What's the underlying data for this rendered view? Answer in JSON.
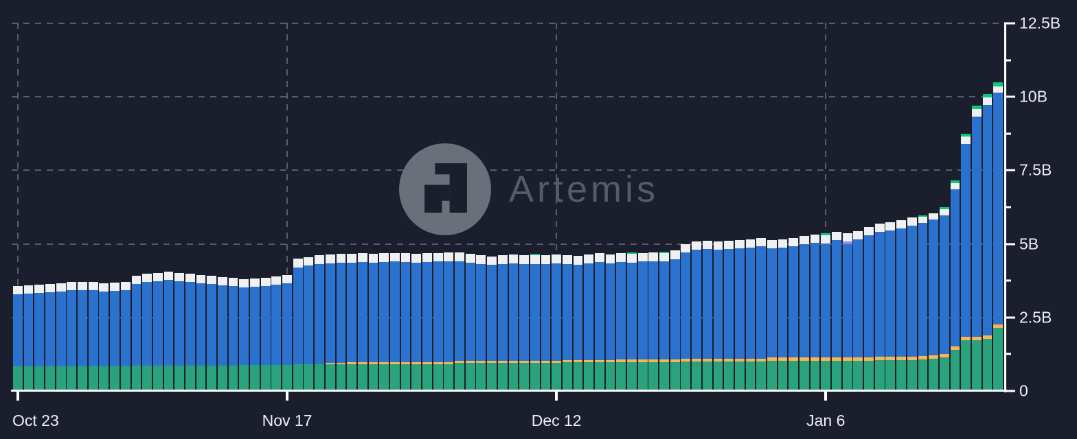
{
  "watermark": {
    "text": "Artemis"
  },
  "colors": {
    "background": "#1b1f2d",
    "axis": "#ffffff",
    "gridline": "#575d6e",
    "tick_label": "#eef0f4",
    "watermark_circle": "#6b6f7a",
    "watermark_text": "#565b66"
  },
  "chart_data": {
    "type": "bar",
    "stacked": true,
    "unit": "billions",
    "title": "",
    "legend": "none",
    "y_axis": {
      "side": "right",
      "max": 12.5,
      "ticks": [
        {
          "value": 0,
          "label": "0"
        },
        {
          "value": 2.5,
          "label": "2.5B"
        },
        {
          "value": 5,
          "label": "5B"
        },
        {
          "value": 7.5,
          "label": "7.5B"
        },
        {
          "value": 10,
          "label": "10B"
        },
        {
          "value": 12.5,
          "label": "12.5B"
        }
      ],
      "minor_ticks": [
        1.25,
        3.75,
        6.25,
        8.75,
        11.25
      ],
      "grid_values": [
        2.5,
        5,
        7.5,
        10,
        12.5
      ]
    },
    "x_axis": {
      "ticks": [
        {
          "index": 0,
          "label": "Oct 23"
        },
        {
          "index": 25,
          "label": "Nov 17"
        },
        {
          "index": 50,
          "label": "Dec 12"
        },
        {
          "index": 75,
          "label": "Jan 6"
        }
      ]
    },
    "series": [
      {
        "name": "green",
        "color": "#2aa27b"
      },
      {
        "name": "orange",
        "color": "#f7b554"
      },
      {
        "name": "blue",
        "color": "#2b72cf"
      },
      {
        "name": "purple",
        "color": "#8e8cf0"
      },
      {
        "name": "white",
        "color": "#eef0f1"
      },
      {
        "name": "mint",
        "color": "#0cc97d"
      }
    ],
    "bars": [
      [
        0.85,
        0,
        2.45,
        0,
        0.28,
        0
      ],
      [
        0.85,
        0,
        2.47,
        0,
        0.28,
        0
      ],
      [
        0.85,
        0,
        2.49,
        0,
        0.28,
        0
      ],
      [
        0.85,
        0,
        2.51,
        0,
        0.28,
        0
      ],
      [
        0.85,
        0,
        2.53,
        0,
        0.28,
        0
      ],
      [
        0.85,
        0,
        2.57,
        0,
        0.28,
        0
      ],
      [
        0.85,
        0,
        2.59,
        0,
        0.28,
        0
      ],
      [
        0.85,
        0,
        2.57,
        0,
        0.28,
        0
      ],
      [
        0.85,
        0,
        2.53,
        0,
        0.28,
        0
      ],
      [
        0.85,
        0,
        2.55,
        0,
        0.28,
        0
      ],
      [
        0.85,
        0,
        2.59,
        0,
        0.28,
        0
      ],
      [
        0.87,
        0,
        2.77,
        0,
        0.28,
        0
      ],
      [
        0.87,
        0,
        2.83,
        0,
        0.28,
        0
      ],
      [
        0.87,
        0,
        2.87,
        0,
        0.28,
        0
      ],
      [
        0.87,
        0,
        2.9,
        0,
        0.28,
        0
      ],
      [
        0.87,
        0,
        2.87,
        0,
        0.28,
        0
      ],
      [
        0.87,
        0,
        2.83,
        0,
        0.28,
        0
      ],
      [
        0.87,
        0,
        2.8,
        0,
        0.28,
        0
      ],
      [
        0.87,
        0,
        2.77,
        0,
        0.28,
        0
      ],
      [
        0.87,
        0,
        2.73,
        0,
        0.28,
        0
      ],
      [
        0.87,
        0,
        2.69,
        0,
        0.28,
        0
      ],
      [
        0.88,
        0,
        2.64,
        0,
        0.28,
        0
      ],
      [
        0.88,
        0,
        2.66,
        0,
        0.28,
        0
      ],
      [
        0.88,
        0,
        2.7,
        0,
        0.28,
        0
      ],
      [
        0.88,
        0,
        2.74,
        0,
        0.28,
        0
      ],
      [
        0.88,
        0,
        2.79,
        0,
        0.28,
        0
      ],
      [
        0.9,
        0,
        3.3,
        0,
        0.3,
        0
      ],
      [
        0.9,
        0,
        3.36,
        0,
        0.3,
        0
      ],
      [
        0.9,
        0,
        3.42,
        0,
        0.3,
        0
      ],
      [
        0.9,
        0.06,
        3.38,
        0,
        0.3,
        0
      ],
      [
        0.9,
        0.06,
        3.4,
        0,
        0.3,
        0
      ],
      [
        0.92,
        0.06,
        3.38,
        0,
        0.3,
        0
      ],
      [
        0.92,
        0.06,
        3.4,
        0,
        0.3,
        0
      ],
      [
        0.92,
        0.06,
        3.38,
        0,
        0.3,
        0
      ],
      [
        0.92,
        0.06,
        3.4,
        0,
        0.3,
        0
      ],
      [
        0.92,
        0.06,
        3.42,
        0,
        0.3,
        0
      ],
      [
        0.92,
        0.06,
        3.4,
        0,
        0.3,
        0
      ],
      [
        0.92,
        0.06,
        3.38,
        0,
        0.3,
        0
      ],
      [
        0.92,
        0.06,
        3.4,
        0,
        0.3,
        0
      ],
      [
        0.92,
        0.06,
        3.42,
        0,
        0.3,
        0
      ],
      [
        0.92,
        0.06,
        3.44,
        0,
        0.3,
        0
      ],
      [
        0.95,
        0.08,
        3.37,
        0,
        0.3,
        0
      ],
      [
        0.95,
        0.08,
        3.33,
        0,
        0.3,
        0
      ],
      [
        0.95,
        0.08,
        3.29,
        0,
        0.3,
        0
      ],
      [
        0.95,
        0.08,
        3.25,
        0,
        0.3,
        0
      ],
      [
        0.95,
        0.08,
        3.29,
        0,
        0.3,
        0
      ],
      [
        0.95,
        0.08,
        3.31,
        0,
        0.3,
        0
      ],
      [
        0.95,
        0.08,
        3.29,
        0,
        0.3,
        0
      ],
      [
        0.95,
        0.08,
        3.28,
        0,
        0.3,
        0.05
      ],
      [
        0.95,
        0.08,
        3.29,
        0,
        0.3,
        0
      ],
      [
        0.95,
        0.08,
        3.31,
        0,
        0.3,
        0
      ],
      [
        0.97,
        0.08,
        3.27,
        0,
        0.3,
        0
      ],
      [
        0.97,
        0.08,
        3.25,
        0,
        0.3,
        0
      ],
      [
        0.97,
        0.08,
        3.29,
        0,
        0.3,
        0
      ],
      [
        0.97,
        0.08,
        3.33,
        0,
        0.3,
        0
      ],
      [
        0.97,
        0.08,
        3.29,
        0,
        0.3,
        0
      ],
      [
        0.97,
        0.1,
        3.31,
        0,
        0.3,
        0
      ],
      [
        0.97,
        0.1,
        3.3,
        0,
        0.3,
        0.05
      ],
      [
        0.97,
        0.1,
        3.33,
        0,
        0.3,
        0
      ],
      [
        0.97,
        0.1,
        3.35,
        0,
        0.3,
        0
      ],
      [
        0.97,
        0.1,
        3.33,
        0,
        0.3,
        0.04
      ],
      [
        0.97,
        0.1,
        3.41,
        0,
        0.3,
        0
      ],
      [
        1.0,
        0.1,
        3.6,
        0,
        0.28,
        0
      ],
      [
        1.0,
        0.1,
        3.7,
        0,
        0.28,
        0
      ],
      [
        1.0,
        0.1,
        3.72,
        0,
        0.28,
        0
      ],
      [
        1.0,
        0.1,
        3.7,
        0,
        0.28,
        0
      ],
      [
        1.0,
        0.1,
        3.72,
        0,
        0.28,
        0
      ],
      [
        1.0,
        0.1,
        3.76,
        0,
        0.28,
        0
      ],
      [
        1.0,
        0.1,
        3.78,
        0,
        0.28,
        0
      ],
      [
        1.0,
        0.1,
        3.82,
        0,
        0.28,
        0
      ],
      [
        1.02,
        0.12,
        3.7,
        0,
        0.28,
        0
      ],
      [
        1.02,
        0.12,
        3.74,
        0,
        0.28,
        0
      ],
      [
        1.02,
        0.12,
        3.78,
        0,
        0.28,
        0
      ],
      [
        1.02,
        0.12,
        3.86,
        0,
        0.28,
        0
      ],
      [
        1.02,
        0.12,
        3.9,
        0,
        0.28,
        0
      ],
      [
        1.02,
        0.12,
        3.88,
        0,
        0.28,
        0.06
      ],
      [
        1.02,
        0.12,
        3.98,
        0,
        0.28,
        0
      ],
      [
        1.02,
        0.12,
        3.86,
        0.08,
        0.28,
        0
      ],
      [
        1.02,
        0.12,
        4.02,
        0,
        0.28,
        0
      ],
      [
        1.02,
        0.12,
        4.16,
        0,
        0.28,
        0
      ],
      [
        1.05,
        0.12,
        4.23,
        0,
        0.28,
        0
      ],
      [
        1.05,
        0.12,
        4.29,
        0,
        0.28,
        0
      ],
      [
        1.05,
        0.12,
        4.35,
        0,
        0.28,
        0
      ],
      [
        1.05,
        0.12,
        4.45,
        0,
        0.28,
        0
      ],
      [
        1.08,
        0.12,
        4.51,
        0,
        0.22,
        0.05
      ],
      [
        1.1,
        0.12,
        4.61,
        0,
        0.22,
        0
      ],
      [
        1.15,
        0.12,
        4.7,
        0,
        0.22,
        0.06
      ],
      [
        1.4,
        0.12,
        5.33,
        0,
        0.22,
        0.08
      ],
      [
        1.72,
        0.13,
        6.55,
        0,
        0.25,
        0.1
      ],
      [
        1.72,
        0.13,
        7.48,
        0,
        0.25,
        0.12
      ],
      [
        1.77,
        0.13,
        7.83,
        0,
        0.25,
        0.12
      ],
      [
        2.14,
        0.13,
        7.87,
        0,
        0.22,
        0.14
      ]
    ]
  }
}
